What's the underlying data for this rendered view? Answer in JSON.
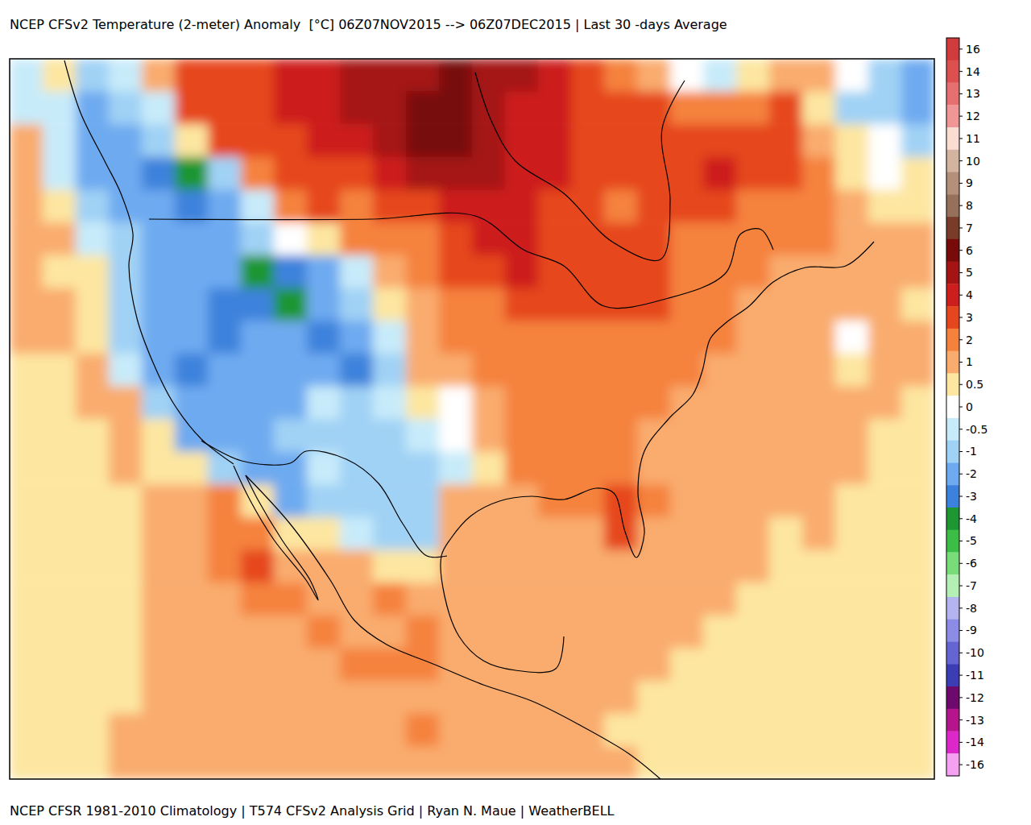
{
  "chart_data": {
    "type": "heatmap",
    "title": "NCEP CFSv2 Temperature (2-meter) Anomaly  [°C] 06Z07NOV2015 --> 06Z07DEC2015 | Last 30 -days Average",
    "footer": "NCEP CFSR 1981-2010 Climatology | T574 CFSv2 Analysis Grid | Ryan N. Maue | WeatherBELL",
    "cells": [
      [
        -0.5,
        0.5,
        -1,
        -0.5,
        1,
        3,
        3,
        3,
        4,
        4,
        5,
        5,
        5,
        6,
        5,
        5,
        4,
        3,
        2,
        1,
        0,
        -0.5,
        0.5,
        1,
        1,
        0,
        -1,
        -2
      ],
      [
        -0.5,
        -0.5,
        -2,
        -1,
        -0.5,
        3,
        3,
        3,
        4,
        4,
        5,
        5,
        6,
        6,
        5,
        4,
        4,
        3,
        3,
        3,
        2,
        2,
        2,
        3,
        0.5,
        -1,
        -1,
        -2
      ],
      [
        1,
        -0.5,
        -2,
        -2,
        -1,
        0.5,
        3,
        3,
        3,
        4,
        4,
        5,
        6,
        6,
        5,
        4,
        4,
        3,
        3,
        3,
        3,
        3,
        3,
        3,
        1,
        0.5,
        0,
        -1
      ],
      [
        1,
        -0.5,
        -2,
        -2,
        -3,
        -4,
        -1,
        2,
        3,
        3,
        3,
        4,
        5,
        5,
        5,
        4,
        4,
        3,
        3,
        3,
        3,
        4,
        3,
        3,
        2,
        0.5,
        0,
        0.5
      ],
      [
        1,
        0.5,
        -1,
        -2,
        -2,
        -3,
        -2,
        -0.5,
        2,
        3,
        2,
        3,
        3,
        4,
        4,
        4,
        3,
        3,
        2,
        3,
        3,
        3,
        2,
        2,
        2,
        1,
        0.5,
        0.5
      ],
      [
        1,
        1,
        -0.5,
        -1,
        -2,
        -2,
        -2,
        -1,
        0,
        0.5,
        2,
        2,
        2,
        3,
        4,
        4,
        3,
        3,
        3,
        3,
        2,
        2,
        2,
        2,
        2,
        1,
        1,
        1
      ],
      [
        1,
        0.5,
        0.5,
        -1,
        -2,
        -2,
        -2,
        -4,
        -3,
        -2,
        -0.5,
        1,
        2,
        3,
        3,
        4,
        3,
        3,
        3,
        3,
        2,
        2,
        2,
        1,
        1,
        1,
        1,
        1
      ],
      [
        1,
        1,
        0.5,
        -1,
        -2,
        -2,
        -3,
        -3,
        -4,
        -2,
        -1,
        0.5,
        1,
        2,
        2,
        3,
        3,
        3,
        3,
        3,
        2,
        2,
        1,
        1,
        1,
        1,
        1,
        0.5
      ],
      [
        1,
        1,
        0.5,
        -1,
        -2,
        -2,
        -3,
        -2,
        -2,
        -3,
        -2,
        -0.5,
        1,
        2,
        2,
        2,
        2,
        2,
        2,
        2,
        2,
        2,
        1,
        1,
        1,
        0,
        1,
        1
      ],
      [
        0.5,
        0.5,
        1,
        -0.5,
        -2,
        -3,
        -2,
        -2,
        -2,
        -2,
        -3,
        -1,
        1,
        1,
        2,
        2,
        2,
        2,
        2,
        2,
        2,
        1,
        1,
        1,
        1,
        0.5,
        1,
        1
      ],
      [
        0.5,
        0.5,
        1,
        1,
        -1,
        -2,
        -2,
        -2,
        -2,
        -0.5,
        -1,
        -0.5,
        0.5,
        0,
        1,
        2,
        2,
        2,
        2,
        2,
        1,
        1,
        1,
        1,
        1,
        1,
        1,
        0.5
      ],
      [
        0.5,
        0.5,
        0.5,
        1,
        0.5,
        -2,
        -2,
        -2,
        -1,
        -1,
        -1,
        -1,
        -0.5,
        0,
        1,
        2,
        2,
        2,
        2,
        1,
        1,
        1,
        1,
        1,
        1,
        1,
        0.5,
        0.5
      ],
      [
        0.5,
        0.5,
        0.5,
        1,
        0.5,
        0.5,
        -1,
        -2,
        -2,
        -0.5,
        -1,
        -1,
        -1,
        -0.5,
        0.5,
        2,
        2,
        2,
        2,
        1,
        1,
        1,
        1,
        1,
        1,
        1,
        0.5,
        0.5
      ],
      [
        0.5,
        0.5,
        0.5,
        0.5,
        1,
        1,
        2,
        0.5,
        -2,
        -1,
        -1,
        -1,
        -1,
        1,
        1,
        1,
        2,
        2,
        3,
        2,
        1,
        1,
        1,
        1,
        1,
        0.5,
        0.5,
        0.5
      ],
      [
        0.5,
        0.5,
        0.5,
        0.5,
        1,
        1,
        2,
        2,
        0.5,
        0.5,
        -0.5,
        -1,
        -1,
        1,
        1,
        1,
        1,
        1,
        3,
        1,
        1,
        1,
        1,
        0.5,
        1,
        0.5,
        0.5,
        0.5
      ],
      [
        0.5,
        0.5,
        0.5,
        0.5,
        1,
        1,
        2,
        3,
        1,
        1,
        1,
        0.5,
        0.5,
        1,
        1,
        1,
        1,
        1,
        1,
        1,
        1,
        1,
        1,
        0.5,
        0.5,
        0.5,
        0.5,
        0.5
      ],
      [
        0.5,
        0.5,
        0.5,
        0.5,
        1,
        1,
        1,
        2,
        2,
        1,
        1,
        2,
        1,
        1,
        1,
        1,
        1,
        1,
        1,
        1,
        1,
        1,
        0.5,
        0.5,
        0.5,
        0.5,
        0.5,
        0.5
      ],
      [
        0.5,
        0.5,
        0.5,
        0.5,
        1,
        1,
        1,
        1,
        1,
        2,
        1,
        1,
        2,
        1,
        1,
        1,
        1,
        1,
        1,
        1,
        1,
        0.5,
        0.5,
        0.5,
        0.5,
        0.5,
        0.5,
        0.5
      ],
      [
        0.5,
        0.5,
        0.5,
        0.5,
        1,
        1,
        1,
        1,
        1,
        1,
        2,
        2,
        2,
        1,
        1,
        1,
        1,
        1,
        1,
        1,
        0.5,
        0.5,
        0.5,
        0.5,
        0.5,
        0.5,
        0.5,
        0.5
      ],
      [
        0.5,
        0.5,
        0.5,
        0.5,
        1,
        1,
        1,
        1,
        1,
        1,
        1,
        1,
        1,
        1,
        1,
        1,
        1,
        1,
        1,
        0.5,
        0.5,
        0.5,
        0.5,
        0.5,
        0.5,
        0.5,
        0.5,
        0.5
      ],
      [
        0.5,
        0.5,
        0.5,
        1,
        1,
        1,
        1,
        1,
        1,
        1,
        1,
        1,
        2,
        1,
        1,
        1,
        1,
        1,
        0.5,
        0.5,
        0.5,
        0.5,
        0.5,
        0.5,
        0.5,
        0.5,
        0.5,
        0.5
      ],
      [
        0.5,
        0.5,
        0.5,
        1,
        1,
        1,
        1,
        1,
        1,
        1,
        1,
        1,
        1,
        1,
        1,
        1,
        1,
        1,
        1,
        0.5,
        0.5,
        0.5,
        0.5,
        0.5,
        0.5,
        0.5,
        0.5,
        0.5
      ]
    ],
    "colorbar_ticks": [
      16,
      14,
      13,
      12,
      11,
      10,
      9,
      8,
      7,
      6,
      5,
      4,
      3,
      2,
      1,
      0.5,
      0,
      -0.5,
      -1,
      -2,
      -3,
      -4,
      -5,
      -6,
      -7,
      -8,
      -9,
      -10,
      -11,
      -12,
      -13,
      -14,
      -16
    ],
    "colorbar_colors": [
      "#d03c3c",
      "#dc5050",
      "#e67070",
      "#f09696",
      "#fadcd2",
      "#d2b4a0",
      "#b4907a",
      "#96705a",
      "#783c28",
      "#780a0a",
      "#a51414",
      "#cd1e1e",
      "#e6461e",
      "#f5823c",
      "#f9ac6e",
      "#fde6a0",
      "#ffffff",
      "#c8ebfa",
      "#a0d2f5",
      "#6eaaf0",
      "#3c82dc",
      "#1e9632",
      "#3cbe46",
      "#78dc78",
      "#b4f0b4",
      "#b4b4f0",
      "#8c8ce6",
      "#6464d2",
      "#3c3cb4",
      "#6e0a6e",
      "#b4148c",
      "#dc28c8",
      "#f5a0f0"
    ]
  }
}
